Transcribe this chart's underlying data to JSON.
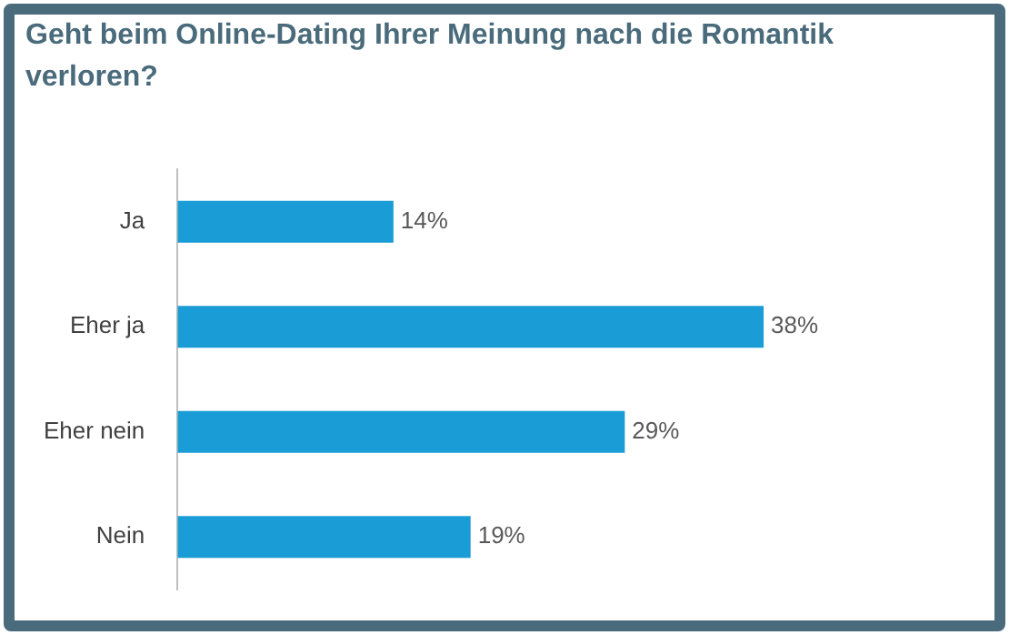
{
  "chart_data": {
    "type": "bar",
    "orientation": "horizontal",
    "title": "Geht beim Online-Dating Ihrer Meinung nach die Romantik verloren?",
    "categories": [
      "Ja",
      "Eher ja",
      "Eher nein",
      "Nein"
    ],
    "values": [
      14,
      38,
      29,
      19
    ],
    "value_labels": [
      "14%",
      "38%",
      "29%",
      "19%"
    ],
    "color": "#1a9dd6",
    "tick_labels": "y",
    "grid": false,
    "legend": false
  }
}
